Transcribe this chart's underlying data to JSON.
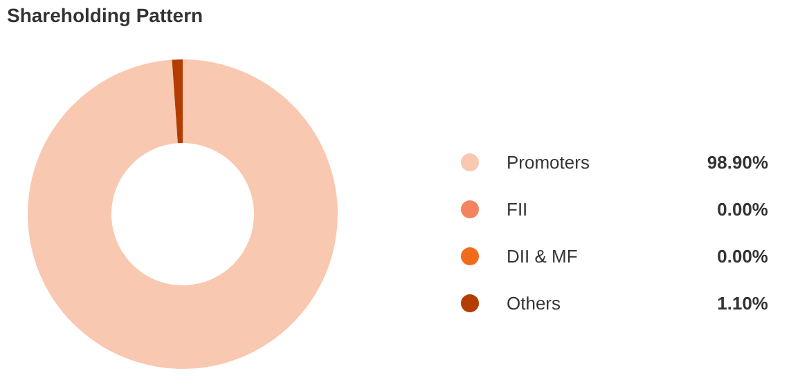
{
  "chart_data": {
    "type": "donut",
    "title": "Shareholding Pattern",
    "categories": [
      "Promoters",
      "FII",
      "DII & MF",
      "Others"
    ],
    "values": [
      98.9,
      0,
      0,
      1.1
    ],
    "colors": [
      "#f9c8b0",
      "#f4845f",
      "#f26b1d",
      "#b33c00"
    ],
    "value_labels": [
      "98.90%",
      "0.00%",
      "0.00%",
      "1.10%"
    ],
    "legend": "right"
  }
}
